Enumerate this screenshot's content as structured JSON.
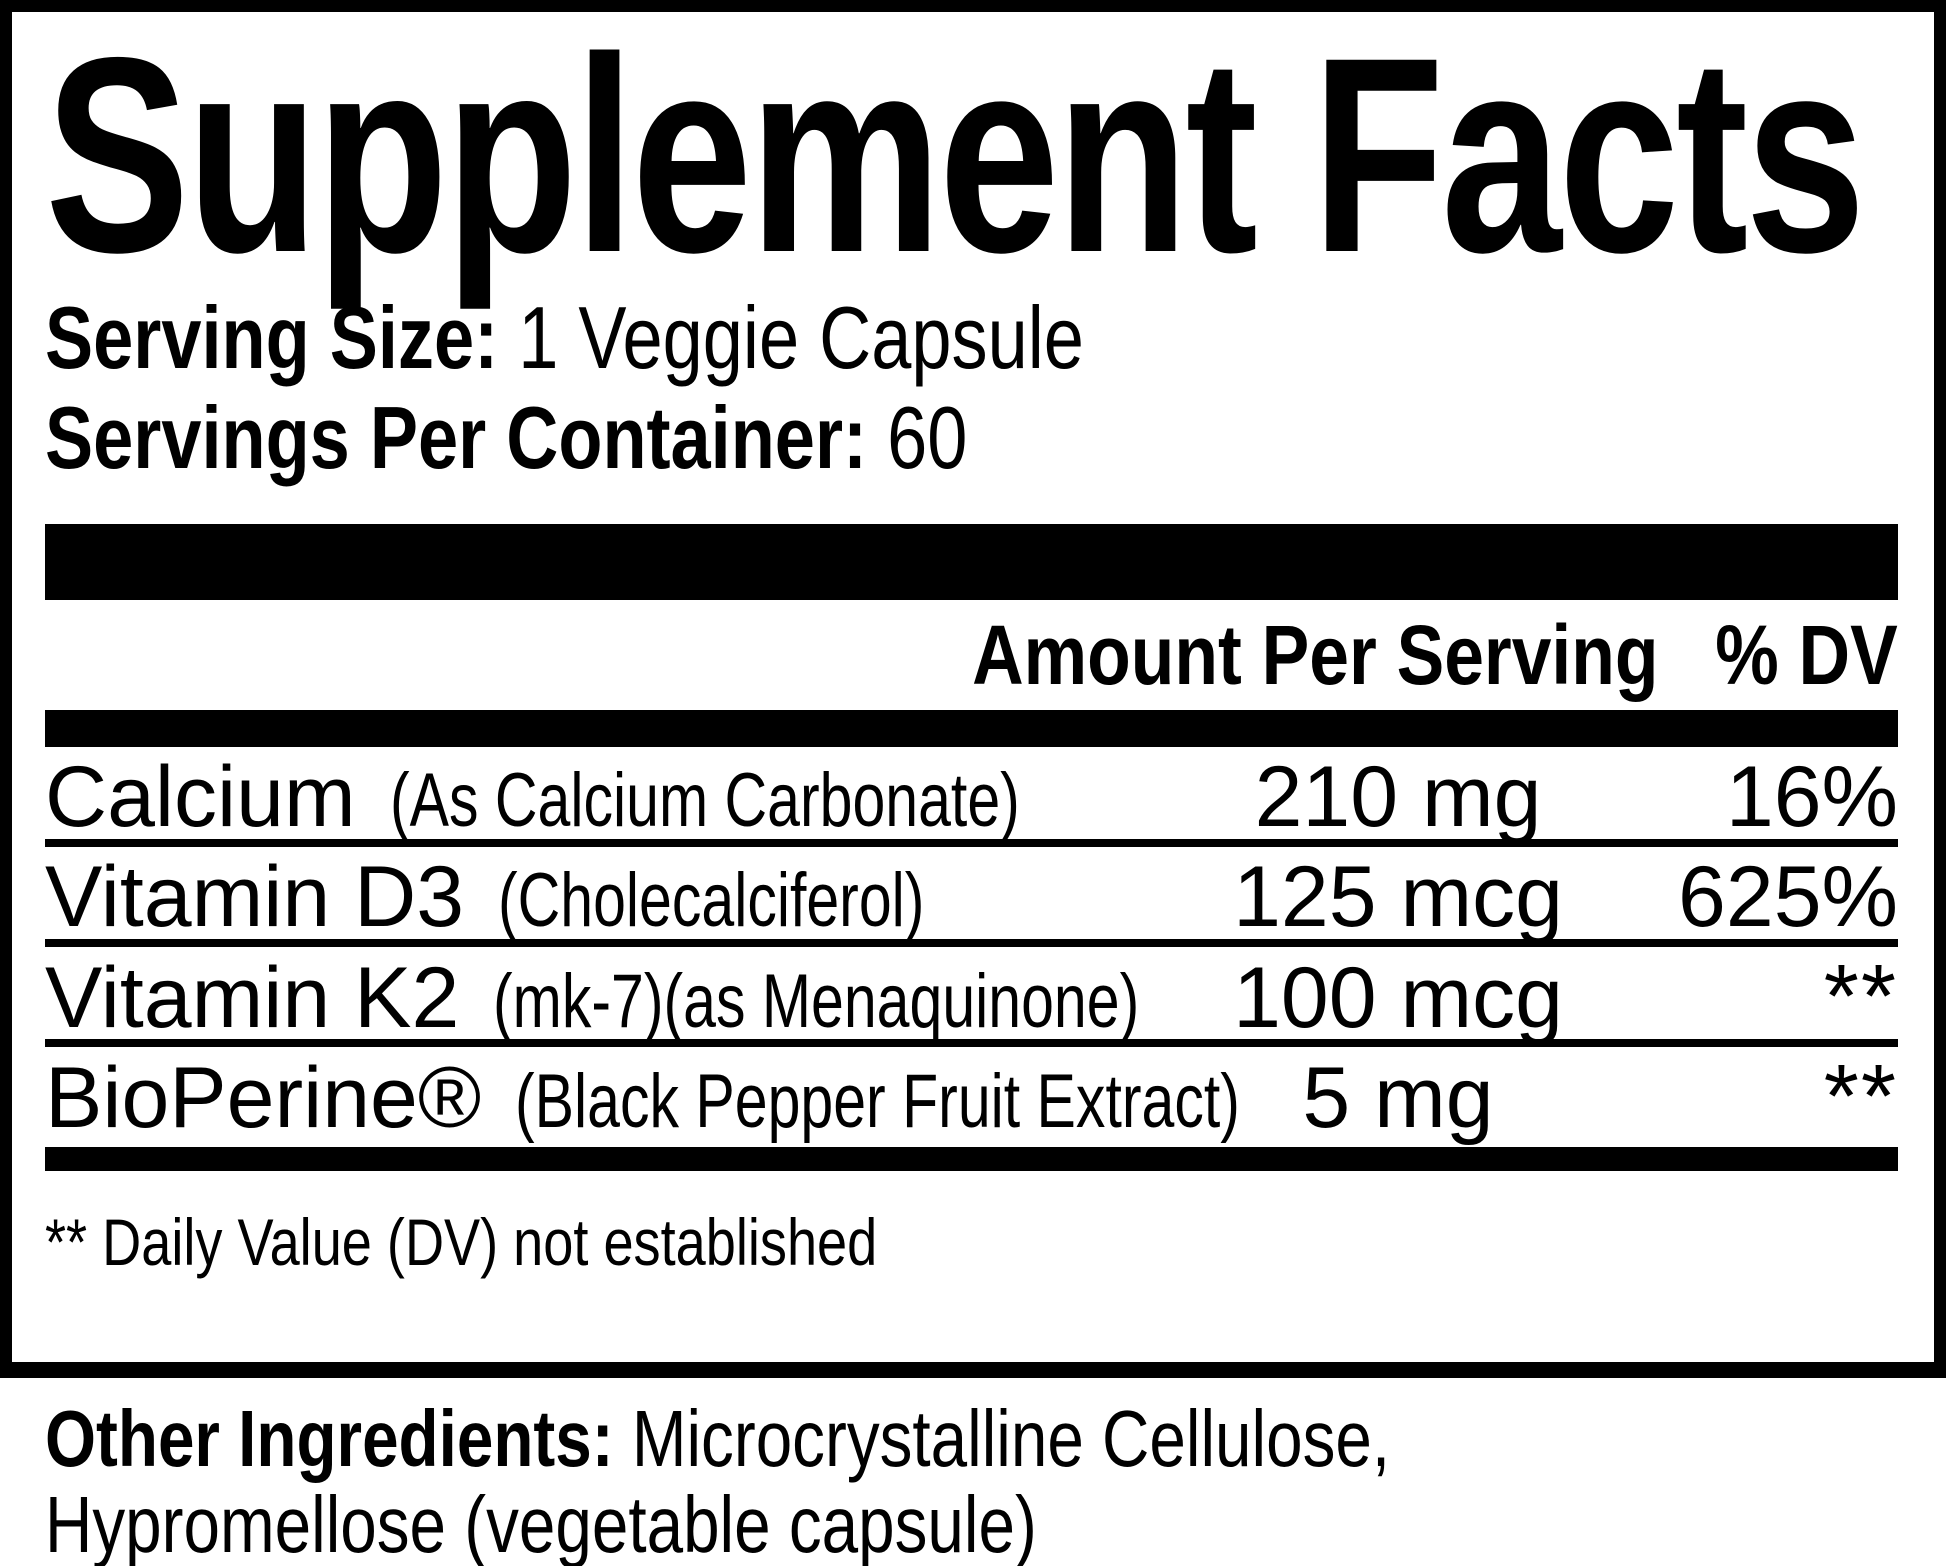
{
  "supplement_label": {
    "title": "Supplement Facts",
    "serving": {
      "size_label": "Serving Size:",
      "size_value": "1 Veggie Capsule",
      "per_container_label": "Servings Per Container:",
      "per_container_value": "60"
    },
    "table": {
      "amount_header": "Amount Per Serving",
      "dv_header": "% DV",
      "rows": [
        {
          "name": "Calcium",
          "detail": "(As Calcium Carbonate)",
          "amount": "210 mg",
          "dv": "16%"
        },
        {
          "name": "Vitamin D3",
          "detail": "(Cholecalciferol)",
          "amount": "125 mcg",
          "dv": "625%"
        },
        {
          "name": "Vitamin K2",
          "detail": "(mk-7)(as Menaquinone)",
          "amount": "100 mcg",
          "dv": "**"
        },
        {
          "name": "BioPerine®",
          "detail": "(Black Pepper Fruit Extract)",
          "amount": "5 mg",
          "dv": "**"
        }
      ],
      "footnote": "** Daily Value (DV) not established"
    },
    "other_ingredients": {
      "label": "Other Ingredients:",
      "line1": "Microcrystalline Cellulose,",
      "line2": "Hypromellose (vegetable capsule)"
    },
    "colors": {
      "ink": "#000000",
      "paper": "#ffffff"
    }
  }
}
